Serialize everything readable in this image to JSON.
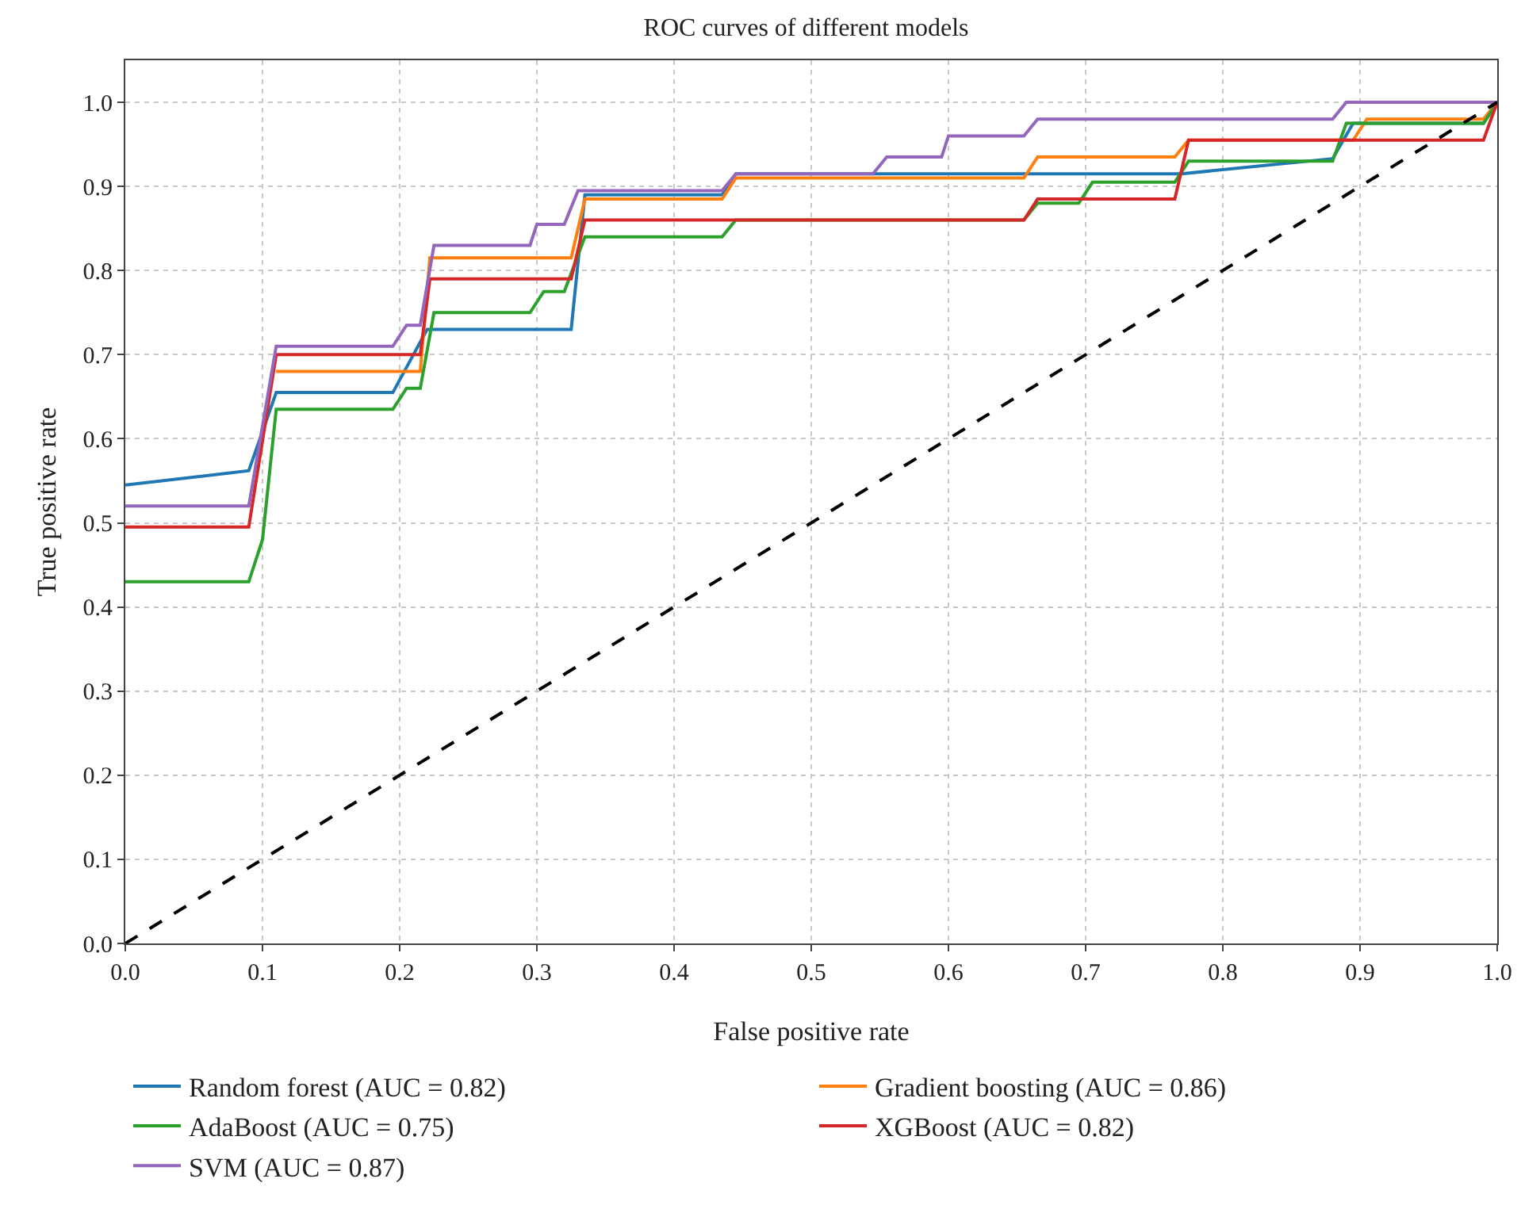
{
  "chart_data": {
    "type": "line",
    "title": "ROC curves of different models",
    "xlabel": "False positive rate",
    "ylabel": "True positive rate",
    "xlim": [
      0,
      1
    ],
    "ylim": [
      0,
      1.05
    ],
    "xticks": [
      {
        "value": 0,
        "label": "0.0"
      },
      0.1,
      0.2,
      0.3,
      0.4,
      0.5,
      0.6,
      0.7,
      0.8,
      0.9,
      {
        "value": 1,
        "label": "1.0"
      }
    ],
    "yticks": [
      {
        "value": 0,
        "label": "0.0"
      },
      0.1,
      0.2,
      0.3,
      0.4,
      0.5,
      0.6,
      0.7,
      0.8,
      0.9,
      {
        "value": 1,
        "label": "1.0"
      }
    ],
    "grid": true,
    "legend": "bottom",
    "line_style": "solid",
    "series": [
      {
        "name": "Random forest (AUC = 0.82)",
        "color": "#1f77b4",
        "x": [
          0,
          0.09,
          0.11,
          0.195,
          0.22,
          0.325,
          0.335,
          0.435,
          0.445,
          0.77,
          0.88,
          0.895,
          0.99,
          1
        ],
        "values": [
          0.545,
          0.562,
          0.655,
          0.655,
          0.73,
          0.73,
          0.89,
          0.89,
          0.915,
          0.915,
          0.933,
          0.975,
          0.975,
          1
        ]
      },
      {
        "name": "Gradient boosting (AUC = 0.86)",
        "color": "#ff7f0e",
        "x": [
          0.11,
          0.215,
          0.222,
          0.325,
          0.335,
          0.435,
          0.445,
          0.655,
          0.665,
          0.765,
          0.775,
          0.895,
          0.905,
          0.99,
          1
        ],
        "values": [
          0.68,
          0.68,
          0.815,
          0.815,
          0.885,
          0.885,
          0.91,
          0.91,
          0.935,
          0.935,
          0.955,
          0.955,
          0.98,
          0.98,
          1
        ]
      },
      {
        "name": "AdaBoost (AUC = 0.75)",
        "color": "#2ca02c",
        "x": [
          0,
          0.09,
          0.1,
          0.11,
          0.195,
          0.205,
          0.215,
          0.225,
          0.295,
          0.305,
          0.32,
          0.335,
          0.435,
          0.445,
          0.655,
          0.665,
          0.695,
          0.705,
          0.765,
          0.775,
          0.88,
          0.89,
          0.99,
          1
        ],
        "values": [
          0.43,
          0.43,
          0.48,
          0.635,
          0.635,
          0.66,
          0.66,
          0.75,
          0.75,
          0.775,
          0.775,
          0.84,
          0.84,
          0.86,
          0.86,
          0.88,
          0.88,
          0.905,
          0.905,
          0.93,
          0.93,
          0.975,
          0.975,
          1
        ]
      },
      {
        "name": "XGBoost (AUC = 0.82)",
        "color": "#d62728",
        "x": [
          0,
          0.09,
          0.11,
          0.215,
          0.222,
          0.325,
          0.335,
          0.655,
          0.665,
          0.765,
          0.775,
          0.99,
          1
        ],
        "values": [
          0.495,
          0.495,
          0.7,
          0.7,
          0.79,
          0.79,
          0.86,
          0.86,
          0.885,
          0.885,
          0.955,
          0.955,
          1
        ]
      },
      {
        "name": "SVM (AUC = 0.87)",
        "color": "#9467bd",
        "x": [
          0,
          0.09,
          0.11,
          0.195,
          0.205,
          0.215,
          0.225,
          0.295,
          0.3,
          0.32,
          0.33,
          0.435,
          0.445,
          0.545,
          0.555,
          0.595,
          0.6,
          0.655,
          0.665,
          0.88,
          0.89,
          1
        ],
        "values": [
          0.52,
          0.52,
          0.71,
          0.71,
          0.735,
          0.735,
          0.83,
          0.83,
          0.855,
          0.855,
          0.895,
          0.895,
          0.915,
          0.915,
          0.935,
          0.935,
          0.96,
          0.96,
          0.98,
          0.98,
          1,
          1
        ]
      },
      {
        "color": "#000000",
        "line_style": "dashed",
        "x": [
          0,
          1
        ],
        "values": [
          0,
          1
        ]
      }
    ]
  }
}
